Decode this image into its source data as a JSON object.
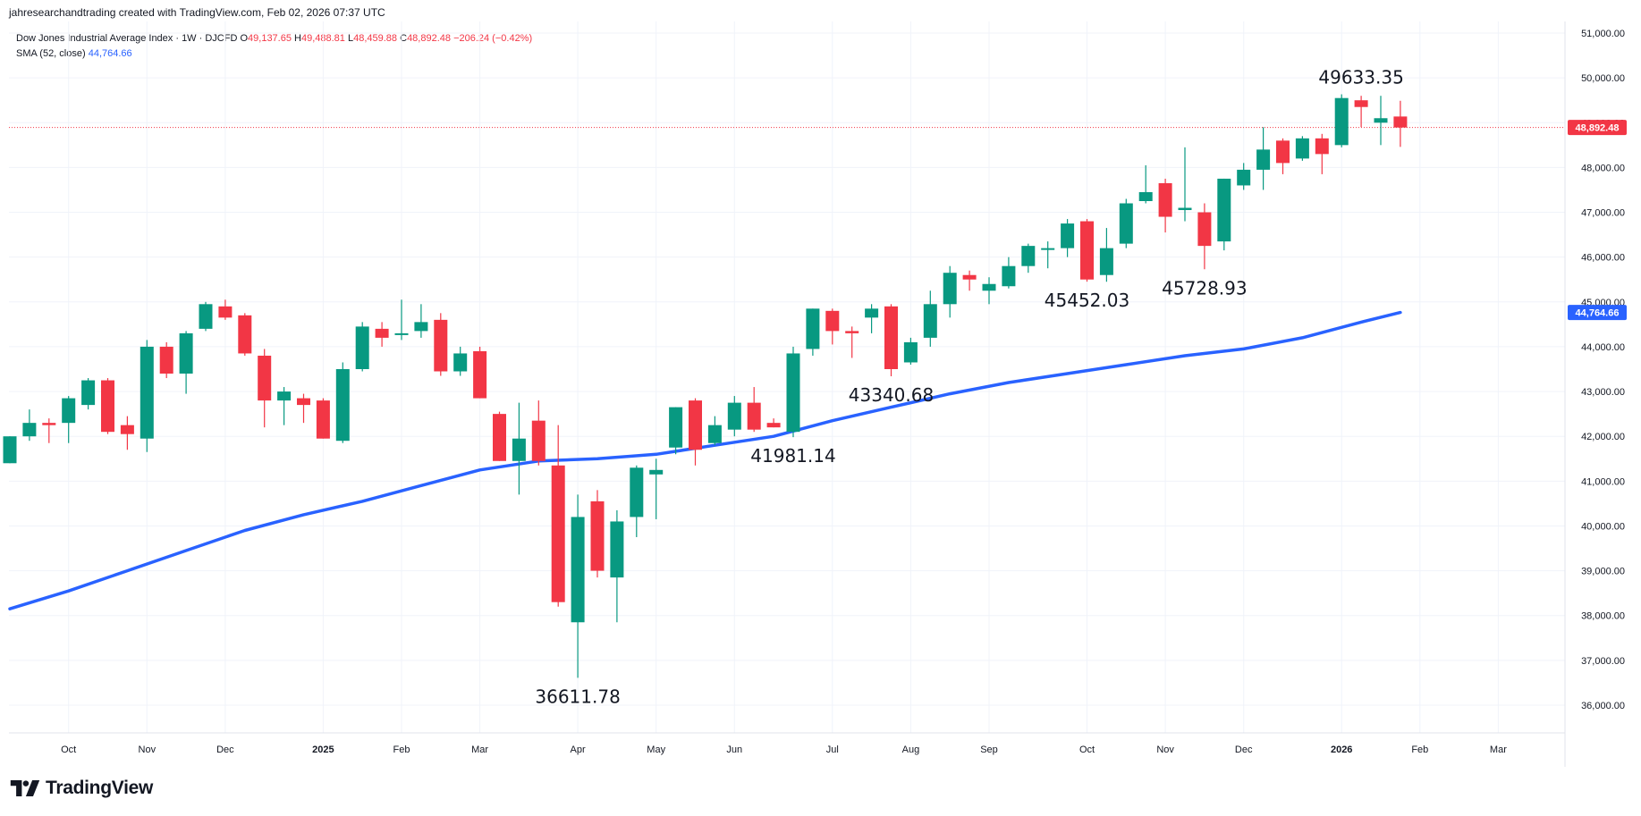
{
  "header": {
    "credit": "jahresearchandtrading created with TradingView.com, Feb 02, 2026 07:37 UTC"
  },
  "legend": {
    "symbol": "Dow Jones Industrial Average Index · 1W · DJCFD",
    "o_label": "O",
    "o_value": "49,137.65",
    "h_label": "H",
    "h_value": "49,488.81",
    "l_label": "L",
    "l_value": "48,459.88",
    "c_label": "C",
    "c_value": "48,892.48",
    "change": "−206.24 (−0.42%)",
    "sma_label": "SMA (52, close)",
    "sma_value": "44,764.66"
  },
  "brand": {
    "name": "TradingView",
    "icon": "tradingview-logo-icon"
  },
  "colors": {
    "up": "#089981",
    "down": "#f23645",
    "sma": "#2962ff",
    "grid": "#f0f3fa",
    "axis_text": "#131722"
  },
  "chart_data": {
    "type": "candlestick",
    "y_axis": {
      "min": 35300,
      "max": 51200,
      "ticks": [
        "36,000.00",
        "37,000.00",
        "38,000.00",
        "39,000.00",
        "40,000.00",
        "41,000.00",
        "42,000.00",
        "43,000.00",
        "44,000.00",
        "45,000.00",
        "46,000.00",
        "47,000.00",
        "48,000.00",
        "49,000.00",
        "50,000.00",
        "51,000.00"
      ],
      "tick_values": [
        36000,
        37000,
        38000,
        39000,
        40000,
        41000,
        42000,
        43000,
        44000,
        45000,
        46000,
        47000,
        48000,
        49000,
        50000,
        51000
      ],
      "position": "right"
    },
    "x_axis": {
      "labels": [
        "Oct",
        "Nov",
        "Dec",
        "2025",
        "Feb",
        "Mar",
        "Apr",
        "May",
        "Jun",
        "Jul",
        "Aug",
        "Sep",
        "Oct",
        "Nov",
        "Dec",
        "2026",
        "Feb",
        "Mar"
      ],
      "bold": [
        "2025",
        "2026"
      ],
      "label_week_index": [
        3,
        7,
        11,
        16,
        20,
        24,
        29,
        33,
        37,
        42,
        46,
        50,
        55,
        59,
        63,
        68,
        72,
        76
      ]
    },
    "candles": [
      {
        "o": 41400,
        "h": 42000,
        "l": 41400,
        "c": 42000
      },
      {
        "o": 42000,
        "h": 42600,
        "l": 41900,
        "c": 42300
      },
      {
        "o": 42300,
        "h": 42400,
        "l": 41850,
        "c": 42250
      },
      {
        "o": 42300,
        "h": 42900,
        "l": 41850,
        "c": 42850
      },
      {
        "o": 42700,
        "h": 43300,
        "l": 42600,
        "c": 43250
      },
      {
        "o": 43250,
        "h": 43300,
        "l": 42050,
        "c": 42100
      },
      {
        "o": 42250,
        "h": 42450,
        "l": 41700,
        "c": 42050
      },
      {
        "o": 41950,
        "h": 44150,
        "l": 41650,
        "c": 44000
      },
      {
        "o": 44000,
        "h": 44100,
        "l": 43300,
        "c": 43400
      },
      {
        "o": 43400,
        "h": 44350,
        "l": 42950,
        "c": 44300
      },
      {
        "o": 44400,
        "h": 45000,
        "l": 44350,
        "c": 44950
      },
      {
        "o": 44900,
        "h": 45050,
        "l": 44600,
        "c": 44650
      },
      {
        "o": 44700,
        "h": 44750,
        "l": 43800,
        "c": 43850
      },
      {
        "o": 43800,
        "h": 43950,
        "l": 42200,
        "c": 42800
      },
      {
        "o": 42800,
        "h": 43100,
        "l": 42250,
        "c": 43000
      },
      {
        "o": 42850,
        "h": 42950,
        "l": 42300,
        "c": 42700
      },
      {
        "o": 42800,
        "h": 42850,
        "l": 41950,
        "c": 41950
      },
      {
        "o": 41900,
        "h": 43650,
        "l": 41850,
        "c": 43500
      },
      {
        "o": 43500,
        "h": 44550,
        "l": 43450,
        "c": 44450
      },
      {
        "o": 44400,
        "h": 44550,
        "l": 44000,
        "c": 44200
      },
      {
        "o": 44300,
        "h": 45050,
        "l": 44150,
        "c": 44300
      },
      {
        "o": 44350,
        "h": 44950,
        "l": 44200,
        "c": 44550
      },
      {
        "o": 44600,
        "h": 44750,
        "l": 43350,
        "c": 43450
      },
      {
        "o": 43450,
        "h": 44000,
        "l": 43350,
        "c": 43850
      },
      {
        "o": 43900,
        "h": 44000,
        "l": 42850,
        "c": 42850
      },
      {
        "o": 42500,
        "h": 42550,
        "l": 41450,
        "c": 41450
      },
      {
        "o": 41450,
        "h": 42750,
        "l": 40700,
        "c": 41950
      },
      {
        "o": 42350,
        "h": 42800,
        "l": 41350,
        "c": 41450
      },
      {
        "o": 41350,
        "h": 42250,
        "l": 38200,
        "c": 38300
      },
      {
        "o": 37850,
        "h": 40700,
        "l": 36611.78,
        "c": 40200
      },
      {
        "o": 40550,
        "h": 40800,
        "l": 38850,
        "c": 39000
      },
      {
        "o": 38850,
        "h": 40350,
        "l": 37850,
        "c": 40100
      },
      {
        "o": 40200,
        "h": 41350,
        "l": 39750,
        "c": 41300
      },
      {
        "o": 41150,
        "h": 41500,
        "l": 40150,
        "c": 41250
      },
      {
        "o": 41750,
        "h": 42650,
        "l": 41600,
        "c": 42650
      },
      {
        "o": 42800,
        "h": 42850,
        "l": 41350,
        "c": 41700
      },
      {
        "o": 41850,
        "h": 42450,
        "l": 41800,
        "c": 42250
      },
      {
        "o": 42150,
        "h": 42900,
        "l": 42000,
        "c": 42750
      },
      {
        "o": 42750,
        "h": 43100,
        "l": 42100,
        "c": 42150
      },
      {
        "o": 42300,
        "h": 42400,
        "l": 42200,
        "c": 42200
      },
      {
        "o": 42100,
        "h": 44000,
        "l": 41981.14,
        "c": 43850
      },
      {
        "o": 43950,
        "h": 44850,
        "l": 43800,
        "c": 44850
      },
      {
        "o": 44800,
        "h": 44850,
        "l": 44050,
        "c": 44350
      },
      {
        "o": 44350,
        "h": 44450,
        "l": 43750,
        "c": 44300
      },
      {
        "o": 44650,
        "h": 44950,
        "l": 44300,
        "c": 44850
      },
      {
        "o": 44900,
        "h": 44950,
        "l": 43340.68,
        "c": 43500
      },
      {
        "o": 43650,
        "h": 44200,
        "l": 43600,
        "c": 44100
      },
      {
        "o": 44200,
        "h": 45250,
        "l": 44000,
        "c": 44950
      },
      {
        "o": 44950,
        "h": 45800,
        "l": 44650,
        "c": 45650
      },
      {
        "o": 45600,
        "h": 45700,
        "l": 45250,
        "c": 45500
      },
      {
        "o": 45250,
        "h": 45550,
        "l": 44950,
        "c": 45400
      },
      {
        "o": 45350,
        "h": 46000,
        "l": 45300,
        "c": 45800
      },
      {
        "o": 45800,
        "h": 46300,
        "l": 45650,
        "c": 46250
      },
      {
        "o": 46200,
        "h": 46350,
        "l": 45750,
        "c": 46200
      },
      {
        "o": 46200,
        "h": 46850,
        "l": 46000,
        "c": 46750
      },
      {
        "o": 46800,
        "h": 46850,
        "l": 45452.03,
        "c": 45500
      },
      {
        "o": 45600,
        "h": 46650,
        "l": 45450,
        "c": 46200
      },
      {
        "o": 46300,
        "h": 47300,
        "l": 46200,
        "c": 47200
      },
      {
        "o": 47250,
        "h": 48050,
        "l": 47200,
        "c": 47450
      },
      {
        "o": 47650,
        "h": 47750,
        "l": 46550,
        "c": 46900
      },
      {
        "o": 47050,
        "h": 48450,
        "l": 46800,
        "c": 47100
      },
      {
        "o": 47000,
        "h": 47200,
        "l": 45728.93,
        "c": 46250
      },
      {
        "o": 46350,
        "h": 47750,
        "l": 46150,
        "c": 47750
      },
      {
        "o": 47600,
        "h": 48100,
        "l": 47500,
        "c": 47950
      },
      {
        "o": 47950,
        "h": 48900,
        "l": 47500,
        "c": 48400
      },
      {
        "o": 48600,
        "h": 48650,
        "l": 47850,
        "c": 48100
      },
      {
        "o": 48200,
        "h": 48700,
        "l": 48150,
        "c": 48650
      },
      {
        "o": 48650,
        "h": 48750,
        "l": 47850,
        "c": 48300
      },
      {
        "o": 48500,
        "h": 49633.35,
        "l": 48450,
        "c": 49550
      },
      {
        "o": 49500,
        "h": 49600,
        "l": 48900,
        "c": 49350
      },
      {
        "o": 49000,
        "h": 49600,
        "l": 48500,
        "c": 49100
      },
      {
        "o": 49137.65,
        "h": 49488.81,
        "l": 48459.88,
        "c": 48892.48
      }
    ],
    "sma": [
      {
        "i": 0,
        "v": 38150
      },
      {
        "i": 3,
        "v": 38550
      },
      {
        "i": 6,
        "v": 39000
      },
      {
        "i": 9,
        "v": 39450
      },
      {
        "i": 12,
        "v": 39900
      },
      {
        "i": 15,
        "v": 40250
      },
      {
        "i": 18,
        "v": 40550
      },
      {
        "i": 21,
        "v": 40900
      },
      {
        "i": 24,
        "v": 41250
      },
      {
        "i": 27,
        "v": 41450
      },
      {
        "i": 30,
        "v": 41500
      },
      {
        "i": 33,
        "v": 41600
      },
      {
        "i": 36,
        "v": 41800
      },
      {
        "i": 39,
        "v": 42000
      },
      {
        "i": 42,
        "v": 42350
      },
      {
        "i": 45,
        "v": 42650
      },
      {
        "i": 48,
        "v": 42950
      },
      {
        "i": 51,
        "v": 43200
      },
      {
        "i": 54,
        "v": 43400
      },
      {
        "i": 57,
        "v": 43600
      },
      {
        "i": 60,
        "v": 43800
      },
      {
        "i": 63,
        "v": 43950
      },
      {
        "i": 66,
        "v": 44200
      },
      {
        "i": 69,
        "v": 44550
      },
      {
        "i": 71,
        "v": 44764.66
      }
    ],
    "annotations": [
      {
        "text": "49633.35",
        "value": 49633.35,
        "week": 69,
        "pos": "above"
      },
      {
        "text": "45728.93",
        "value": 45728.93,
        "week": 61,
        "pos": "below"
      },
      {
        "text": "45452.03",
        "value": 45452.03,
        "week": 55,
        "pos": "below"
      },
      {
        "text": "43340.68",
        "value": 43340.68,
        "week": 45,
        "pos": "below"
      },
      {
        "text": "41981.14",
        "value": 41981.14,
        "week": 40,
        "pos": "below"
      },
      {
        "text": "36611.78",
        "value": 36611.78,
        "week": 29,
        "pos": "below"
      }
    ],
    "last_price": {
      "value": 48892.48,
      "label": "48,892.48"
    },
    "sma_last": {
      "value": 44764.66,
      "label": "44,764.66"
    },
    "grid": true
  }
}
